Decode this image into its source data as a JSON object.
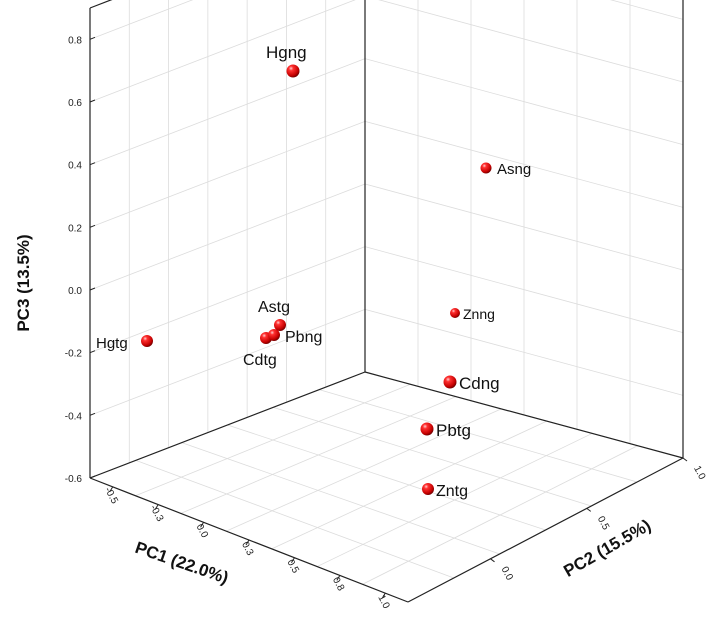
{
  "chart_data": {
    "type": "scatter",
    "subtype": "3d-scatter",
    "xlabel": "PC1 (22.0%)",
    "ylabel": "PC2 (15.5%)",
    "zlabel": "PC3 (13.5%)",
    "xlim": [
      -0.6,
      1.0
    ],
    "ylim": [
      -0.4,
      1.0
    ],
    "zlim": [
      -0.6,
      0.9
    ],
    "grid": true,
    "marker_color": "#dd1111",
    "x_ticks": [
      "-0.5",
      "-0.3",
      "0.0",
      "0.3",
      "0.5",
      "0.8",
      "1.0"
    ],
    "y_ticks": [
      "0.0",
      "0.5",
      "1.0"
    ],
    "z_ticks": [
      "-0.6",
      "-0.4",
      "-0.2",
      "0.0",
      "0.2",
      "0.4",
      "0.6",
      "0.8"
    ],
    "points": [
      {
        "label": "Hgng",
        "z": 0.85
      },
      {
        "label": "Asng",
        "z": 0.55
      },
      {
        "label": "Hgtg",
        "z": -0.08
      },
      {
        "label": "Astg",
        "z": -0.04
      },
      {
        "label": "Pbng",
        "z": -0.07
      },
      {
        "label": "Cdtg",
        "z": -0.09
      },
      {
        "label": "Znng",
        "z": 0.0
      },
      {
        "label": "Cdng",
        "z": -0.22
      },
      {
        "label": "Pbtg",
        "z": -0.39
      },
      {
        "label": "Zntg",
        "z": -0.58
      }
    ]
  }
}
